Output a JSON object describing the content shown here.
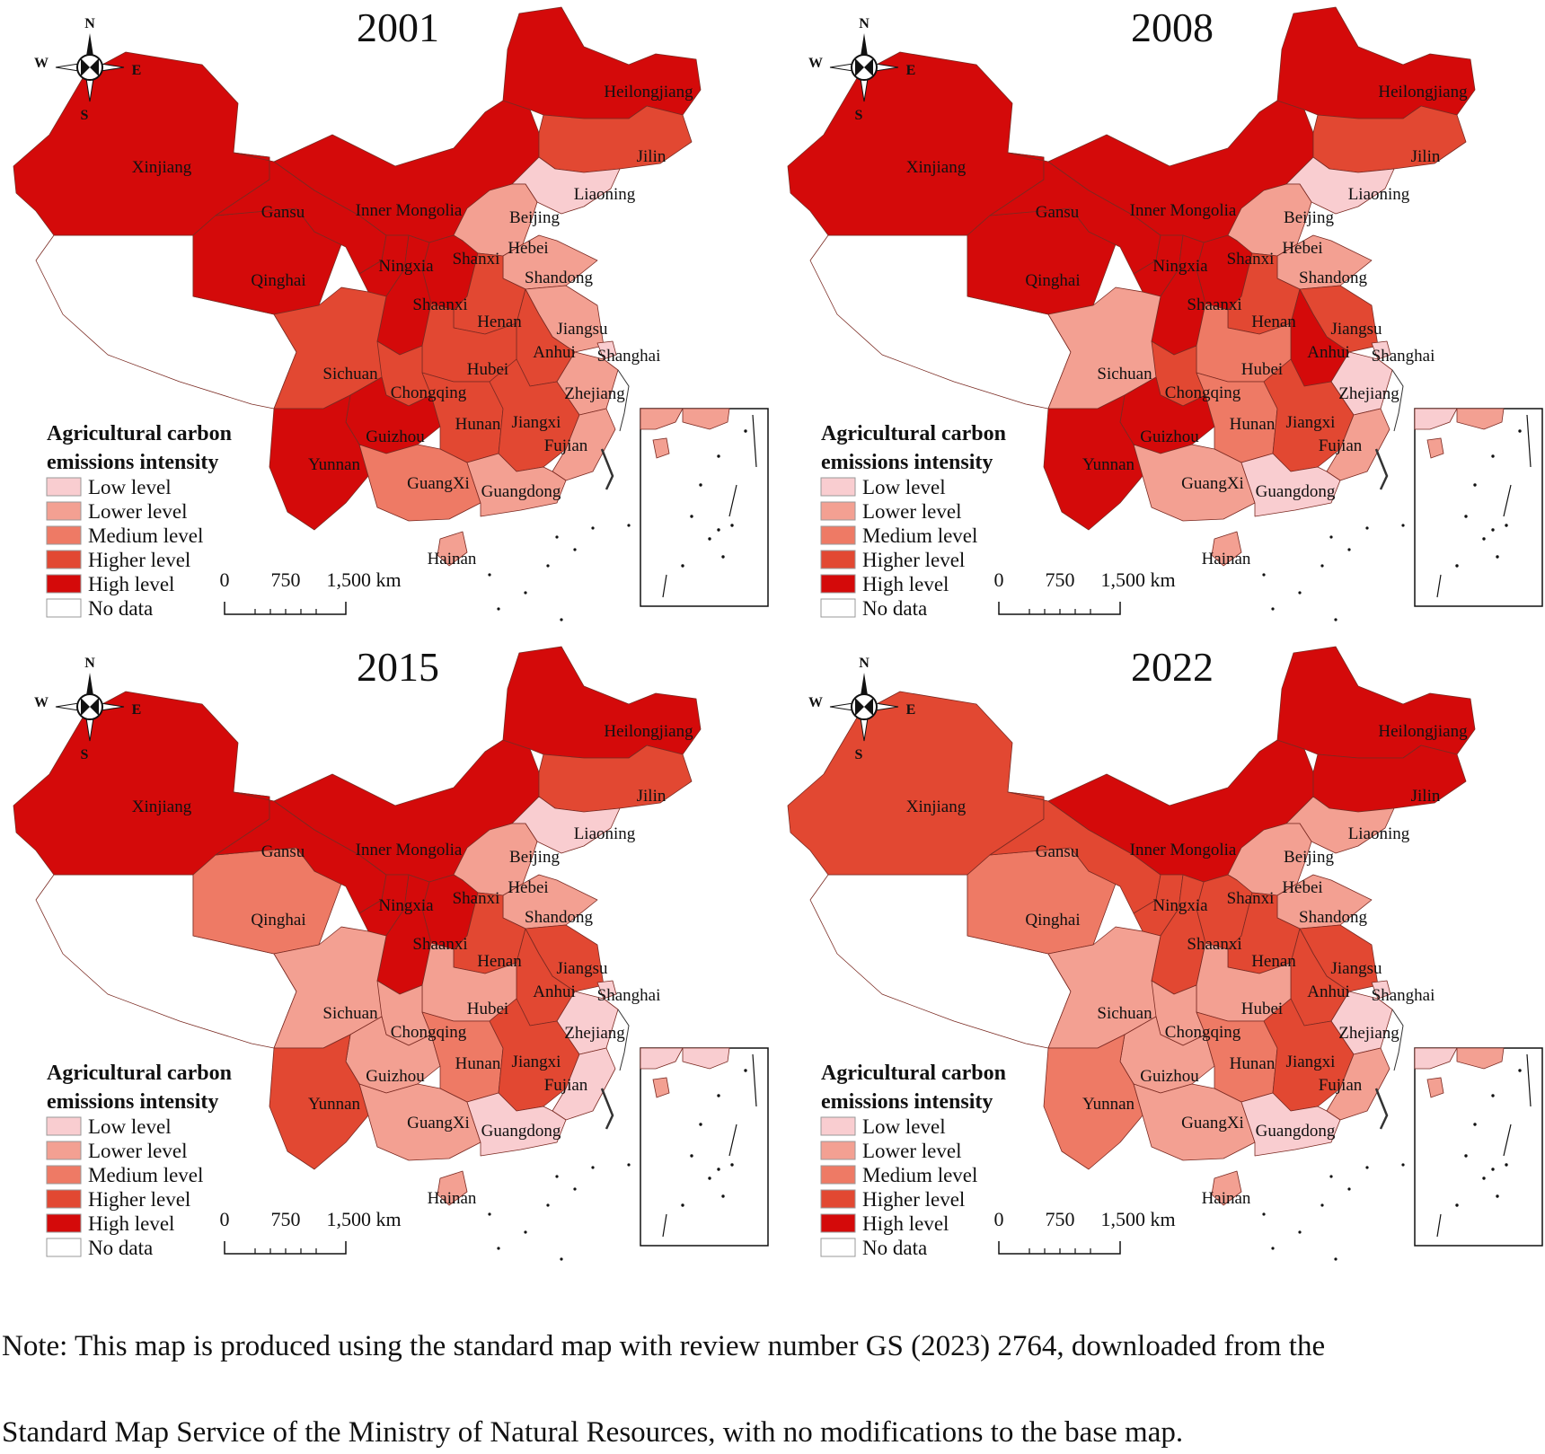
{
  "colors": {
    "low": "#f9cdd0",
    "lower": "#f3a092",
    "medium": "#ee7a65",
    "higher": "#e24832",
    "high": "#d40a0a",
    "nodata": "#ffffff"
  },
  "legend": {
    "title_line1": "Agricultural carbon",
    "title_line2": "emissions intensity",
    "items": [
      {
        "label": "Low level",
        "level": "low"
      },
      {
        "label": "Lower level",
        "level": "lower"
      },
      {
        "label": "Medium level",
        "level": "medium"
      },
      {
        "label": "Higher level",
        "level": "higher"
      },
      {
        "label": "High level",
        "level": "high"
      },
      {
        "label": "No data",
        "level": "nodata"
      }
    ]
  },
  "scale_bar": {
    "label_0": "0",
    "label_750": "750",
    "label_1500": "1,500 km"
  },
  "compass": {
    "n": "N",
    "s": "S",
    "e": "E",
    "w": "W",
    "icon": "compass-rose-icon"
  },
  "panels": [
    {
      "year": "2001",
      "levels": {
        "Xinjiang": "high",
        "Tibet": "nodata",
        "Qinghai": "high",
        "Gansu": "high",
        "Inner Mongolia": "high",
        "Heilongjiang": "high",
        "Jilin": "higher",
        "Liaoning": "low",
        "Beijing": "lower",
        "Hebei": "lower",
        "Shanxi": "high",
        "Shaanxi": "high",
        "Ningxia": "high",
        "Shandong": "lower",
        "Henan": "higher",
        "Jiangsu": "lower",
        "Anhui": "higher",
        "Shanghai": "low",
        "Zhejiang": "lower",
        "Hubei": "higher",
        "Sichuan": "higher",
        "Chongqing": "higher",
        "Guizhou": "high",
        "Yunnan": "high",
        "Hunan": "higher",
        "Jiangxi": "higher",
        "Fujian": "lower",
        "GuangXi": "medium",
        "Guangdong": "lower",
        "Hainan": "lower"
      }
    },
    {
      "year": "2008",
      "levels": {
        "Xinjiang": "high",
        "Tibet": "nodata",
        "Qinghai": "high",
        "Gansu": "high",
        "Inner Mongolia": "high",
        "Heilongjiang": "high",
        "Jilin": "higher",
        "Liaoning": "low",
        "Beijing": "lower",
        "Hebei": "lower",
        "Shanxi": "high",
        "Shaanxi": "high",
        "Ningxia": "high",
        "Shandong": "lower",
        "Henan": "higher",
        "Jiangsu": "higher",
        "Anhui": "high",
        "Shanghai": "low",
        "Zhejiang": "low",
        "Hubei": "medium",
        "Sichuan": "lower",
        "Chongqing": "higher",
        "Guizhou": "high",
        "Yunnan": "high",
        "Hunan": "medium",
        "Jiangxi": "higher",
        "Fujian": "lower",
        "GuangXi": "lower",
        "Guangdong": "low",
        "Hainan": "lower"
      }
    },
    {
      "year": "2015",
      "levels": {
        "Xinjiang": "high",
        "Tibet": "nodata",
        "Qinghai": "medium",
        "Gansu": "high",
        "Inner Mongolia": "high",
        "Heilongjiang": "high",
        "Jilin": "higher",
        "Liaoning": "low",
        "Beijing": "lower",
        "Hebei": "lower",
        "Shanxi": "high",
        "Shaanxi": "high",
        "Ningxia": "high",
        "Shandong": "lower",
        "Henan": "higher",
        "Jiangsu": "higher",
        "Anhui": "higher",
        "Shanghai": "low",
        "Zhejiang": "low",
        "Hubei": "lower",
        "Sichuan": "lower",
        "Chongqing": "lower",
        "Guizhou": "lower",
        "Yunnan": "higher",
        "Hunan": "medium",
        "Jiangxi": "higher",
        "Fujian": "low",
        "GuangXi": "lower",
        "Guangdong": "low",
        "Hainan": "lower"
      }
    },
    {
      "year": "2022",
      "levels": {
        "Xinjiang": "higher",
        "Tibet": "nodata",
        "Qinghai": "medium",
        "Gansu": "higher",
        "Inner Mongolia": "high",
        "Heilongjiang": "high",
        "Jilin": "high",
        "Liaoning": "lower",
        "Beijing": "low",
        "Hebei": "lower",
        "Shanxi": "higher",
        "Shaanxi": "higher",
        "Ningxia": "higher",
        "Shandong": "lower",
        "Henan": "higher",
        "Jiangsu": "higher",
        "Anhui": "higher",
        "Shanghai": "low",
        "Zhejiang": "low",
        "Hubei": "lower",
        "Sichuan": "lower",
        "Chongqing": "lower",
        "Guizhou": "lower",
        "Yunnan": "medium",
        "Hunan": "medium",
        "Jiangxi": "higher",
        "Fujian": "lower",
        "GuangXi": "lower",
        "Guangdong": "low",
        "Hainan": "lower"
      }
    }
  ],
  "province_labels": [
    "Xinjiang",
    "Gansu",
    "Inner Mongolia",
    "Heilongjiang",
    "Jilin",
    "Liaoning",
    "Beijing",
    "Hebei",
    "Shanxi",
    "Ningxia",
    "Qinghai",
    "Shandong",
    "Shaanxi",
    "Henan",
    "Jiangsu",
    "Anhui",
    "Shanghai",
    "Hubei",
    "Sichuan",
    "Chongqing",
    "Zhejiang",
    "Guizhou",
    "Hunan",
    "Jiangxi",
    "Fujian",
    "Yunnan",
    "GuangXi",
    "Guangdong",
    "Hainan"
  ],
  "note": {
    "line1": "Note: This map is produced using the standard map with review number GS (2023) 2764, downloaded from the",
    "line2": "Standard Map Service of the Ministry of Natural Resources, with no modifications to the base map."
  }
}
